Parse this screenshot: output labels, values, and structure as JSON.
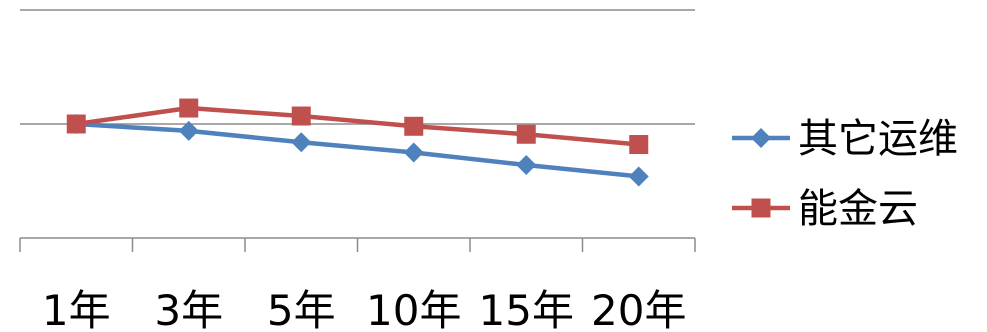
{
  "chart_data": {
    "type": "line",
    "categories": [
      "1年",
      "3年",
      "5年",
      "10年",
      "15年",
      "20年"
    ],
    "series": [
      {
        "name": "其它运维",
        "values": [
          1.0,
          0.94,
          0.84,
          0.75,
          0.64,
          0.54
        ],
        "color": "#4F81BD",
        "marker": "diamond"
      },
      {
        "name": "能金云",
        "values": [
          1.0,
          1.14,
          1.07,
          0.98,
          0.91,
          0.82
        ],
        "color": "#C0504D",
        "marker": "square"
      }
    ],
    "ylim": [
      0,
      2
    ],
    "grid": true,
    "legend": "right"
  }
}
